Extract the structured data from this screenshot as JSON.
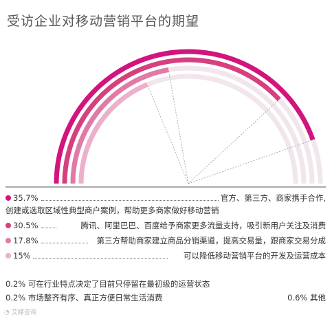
{
  "title": "受访企业对移动营销平台的期望",
  "chart_data": {
    "type": "radial-bar",
    "title": "受访企业对移动营销平台的期望",
    "series": [
      {
        "value": 35.7,
        "label": "35.7%",
        "desc_line1": "官方、第三方、商家携手合作,",
        "desc_line2": "创建或选取区域性典型商户案例，帮助更多商家做好移动营销",
        "color": "#d3137e"
      },
      {
        "value": 30.5,
        "label": "30.5%",
        "desc_line1": "腾讯、阿里巴巴、百度给予商家更多流量支持，吸引新用户关注及消费",
        "color": "#d6407f"
      },
      {
        "value": 17.8,
        "label": "17.8%",
        "desc_line1": "第三方帮助商家建立商品分销渠道，提高交易量，跟商家交易分成",
        "color": "#e07aa6"
      },
      {
        "value": 15,
        "label": "15%",
        "desc_line1": "可以降低移动营销平台的开发及运营成本",
        "color": "#edb0cc"
      }
    ],
    "track_color": "#f1e6ec",
    "scale_max": 40
  },
  "notes": [
    {
      "left": "0.2% 可在行业特点决定了目前只停留在最初级的运营状态"
    },
    {
      "left": "0.2% 市场整齐有序、真正方便日常生活消费",
      "right": "0.6% 其他"
    }
  ],
  "watermark": "艾媒咨询"
}
